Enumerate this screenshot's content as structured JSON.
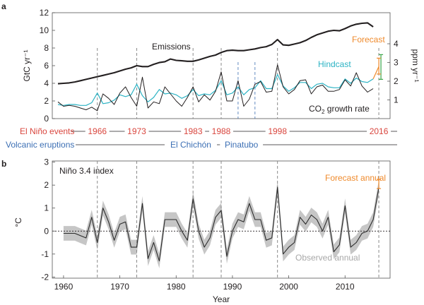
{
  "colors": {
    "red": "#d9463e",
    "blue": "#3c6fb4",
    "cyan": "#2cb3c4",
    "orange": "#ef8a2c",
    "green": "#3aa549",
    "gray_band": "#c6c6c6",
    "gray_label": "#a8a8a8",
    "axis": "#555555",
    "text": "#231f20"
  },
  "chart_data": [
    {
      "panel": "a",
      "type": "line",
      "xlabel": "",
      "ylabel": "GtC yr⁻¹",
      "ylabel_right": "ppm yr⁻¹",
      "xlim": [
        1958,
        2018
      ],
      "ylim": [
        0,
        12
      ],
      "y_ticks": [
        0,
        2,
        4,
        6,
        8,
        10,
        12
      ],
      "right_axis": {
        "ppm_per_unit_left": 2.12,
        "ticks": [
          1,
          2,
          3,
          4
        ]
      },
      "labels": {
        "emissions": "Emissions",
        "hindcast": "Hindcast",
        "forecast": "Forecast",
        "growth_prefix": "CO",
        "growth_sub": "2",
        "growth_suffix": " growth rate"
      },
      "series": [
        {
          "name": "Emissions",
          "x": [
            1959,
            1960,
            1961,
            1962,
            1963,
            1964,
            1965,
            1966,
            1967,
            1968,
            1969,
            1970,
            1971,
            1972,
            1973,
            1974,
            1975,
            1976,
            1977,
            1978,
            1979,
            1980,
            1981,
            1982,
            1983,
            1984,
            1985,
            1986,
            1987,
            1988,
            1989,
            1990,
            1991,
            1992,
            1993,
            1994,
            1995,
            1996,
            1997,
            1998,
            1999,
            2000,
            2001,
            2002,
            2003,
            2004,
            2005,
            2006,
            2007,
            2008,
            2009,
            2010,
            2011,
            2012,
            2013,
            2014,
            2015
          ],
          "values": [
            3.95,
            4.0,
            4.05,
            4.15,
            4.3,
            4.45,
            4.6,
            4.75,
            4.9,
            5.05,
            5.2,
            5.4,
            5.6,
            5.75,
            6.0,
            5.9,
            5.9,
            6.15,
            6.35,
            6.45,
            6.75,
            6.6,
            6.55,
            6.5,
            6.5,
            6.65,
            6.85,
            7.05,
            7.2,
            7.5,
            7.7,
            7.75,
            7.7,
            7.7,
            7.8,
            7.9,
            8.05,
            8.15,
            8.4,
            8.95,
            8.35,
            8.3,
            8.45,
            8.6,
            8.85,
            9.2,
            9.5,
            9.7,
            9.9,
            10.0,
            9.95,
            10.2,
            10.5,
            10.7,
            10.8,
            10.85,
            10.4
          ]
        },
        {
          "name": "CO2 growth rate",
          "x": [
            1959,
            1960,
            1961,
            1962,
            1963,
            1964,
            1965,
            1966,
            1967,
            1968,
            1969,
            1970,
            1971,
            1972,
            1973,
            1974,
            1975,
            1976,
            1977,
            1978,
            1979,
            1980,
            1981,
            1982,
            1983,
            1984,
            1985,
            1986,
            1987,
            1988,
            1989,
            1990,
            1991,
            1992,
            1993,
            1994,
            1995,
            1996,
            1997,
            1998,
            1999,
            2000,
            2001,
            2002,
            2003,
            2004,
            2005,
            2006,
            2007,
            2008,
            2009,
            2010,
            2011,
            2012,
            2013,
            2014,
            2015
          ],
          "values": [
            1.9,
            1.4,
            1.5,
            1.4,
            1.2,
            1.0,
            1.3,
            0.9,
            2.8,
            2.3,
            1.6,
            2.9,
            3.6,
            2.4,
            1.4,
            4.7,
            1.2,
            1.9,
            1.7,
            3.6,
            2.8,
            2.0,
            1.4,
            2.4,
            3.6,
            1.9,
            2.7,
            2.1,
            3.1,
            5.3,
            2.0,
            2.0,
            4.3,
            1.4,
            2.2,
            3.9,
            4.2,
            3.0,
            3.1,
            6.1,
            3.6,
            2.8,
            3.3,
            4.3,
            4.4,
            2.8,
            3.6,
            3.8,
            3.1,
            3.1,
            3.3,
            4.4,
            3.7,
            5.2,
            3.7,
            3.0,
            3.4
          ]
        },
        {
          "name": "Hindcast",
          "x": [
            1959,
            1960,
            1961,
            1962,
            1963,
            1964,
            1965,
            1966,
            1967,
            1968,
            1969,
            1970,
            1971,
            1972,
            1973,
            1974,
            1975,
            1976,
            1977,
            1978,
            1979,
            1980,
            1981,
            1982,
            1983,
            1984,
            1985,
            1986,
            1987,
            1988,
            1989,
            1990,
            1991,
            1992,
            1993,
            1994,
            1995,
            1996,
            1997,
            1998,
            1999,
            2000,
            2001,
            2002,
            2003,
            2004,
            2005,
            2006,
            2007,
            2008,
            2009,
            2010,
            2011,
            2012,
            2013,
            2014,
            2015
          ],
          "values": [
            1.6,
            1.5,
            1.6,
            1.6,
            1.5,
            1.5,
            1.8,
            2.9,
            1.7,
            1.8,
            2.1,
            2.7,
            2.5,
            2.7,
            3.9,
            2.6,
            1.9,
            2.4,
            3.3,
            2.8,
            2.9,
            2.7,
            2.3,
            2.6,
            3.3,
            2.6,
            2.8,
            2.7,
            3.2,
            4.3,
            2.7,
            2.9,
            3.6,
            2.7,
            3.3,
            3.5,
            4.3,
            3.4,
            3.4,
            5.0,
            3.7,
            3.1,
            3.5,
            4.1,
            4.1,
            3.4,
            3.9,
            4.0,
            3.6,
            3.5,
            3.5,
            4.5,
            4.0,
            4.6,
            4.2,
            4.1,
            4.5
          ]
        }
      ],
      "forecast_2016": {
        "x": 2016,
        "hindcast_join": 4.5,
        "orange": {
          "low": 5.05,
          "mid": 5.9,
          "high": 6.85
        },
        "green": {
          "low": 4.45,
          "mid": 5.85,
          "high": 7.25
        }
      },
      "dashed_markers": {
        "el_nino_gray": [
          1966,
          1973,
          1983,
          1988,
          1998,
          2016
        ],
        "volcanic_blue": [
          1991,
          1994
        ]
      }
    },
    {
      "panel": "b",
      "type": "area",
      "title": "Niño 3.4 index",
      "xlabel": "Year",
      "ylabel": "°C",
      "xlim": [
        1958,
        2018
      ],
      "ylim": [
        -2.05,
        3.05
      ],
      "x_ticks": [
        1960,
        1970,
        1980,
        1990,
        2000,
        2010
      ],
      "y_ticks": [
        -2,
        -1,
        0,
        1,
        2,
        3
      ],
      "labels": {
        "forecast_annual": "Forecast annual",
        "observed_annual": "Observed annual"
      },
      "series": [
        {
          "name": "Observed annual",
          "x": [
            1960,
            1961,
            1962,
            1963,
            1964,
            1965,
            1966,
            1967,
            1968,
            1969,
            1970,
            1971,
            1972,
            1973,
            1974,
            1975,
            1976,
            1977,
            1978,
            1979,
            1980,
            1981,
            1982,
            1983,
            1984,
            1985,
            1986,
            1987,
            1988,
            1989,
            1990,
            1991,
            1992,
            1993,
            1994,
            1995,
            1996,
            1997,
            1998,
            1999,
            2000,
            2001,
            2002,
            2003,
            2004,
            2005,
            2006,
            2007,
            2008,
            2009,
            2010,
            2011,
            2012,
            2013,
            2014,
            2015,
            2016
          ],
          "values": [
            -0.1,
            -0.1,
            -0.1,
            -0.2,
            -0.3,
            0.6,
            -0.5,
            1.0,
            0.4,
            -0.4,
            0.3,
            0.4,
            -0.7,
            -0.7,
            1.2,
            -1.2,
            -0.5,
            -1.3,
            0.5,
            0.5,
            0.5,
            0.0,
            -0.4,
            1.4,
            0.0,
            -0.7,
            -0.3,
            0.6,
            0.9,
            -1.1,
            0.0,
            0.5,
            0.4,
            1.2,
            0.5,
            0.5,
            -0.4,
            -0.3,
            1.9,
            -1.0,
            -0.7,
            -0.5,
            0.6,
            0.3,
            0.7,
            0.5,
            0.0,
            0.6,
            -0.9,
            -0.6,
            1.1,
            -0.7,
            -0.5,
            -0.1,
            0.0,
            0.5,
            1.9
          ],
          "band_half_width": 0.32
        }
      ],
      "forecast_2016": {
        "x": 2016,
        "low": 1.85,
        "high": 2.25
      },
      "dashed_markers": {
        "el_nino_gray": [
          1966,
          1973,
          1983,
          1988,
          1998,
          2016
        ]
      }
    }
  ],
  "panel_labels": {
    "a": "a",
    "b": "b"
  },
  "events": {
    "el_nino_label": "El Niño events",
    "el_nino_years": [
      "1966",
      "1973",
      "1983",
      "1988",
      "1998",
      "2016"
    ],
    "volcanic_label": "Volcanic eruptions",
    "volcanic_names": [
      "El Chichón",
      "Pinatubo"
    ]
  }
}
